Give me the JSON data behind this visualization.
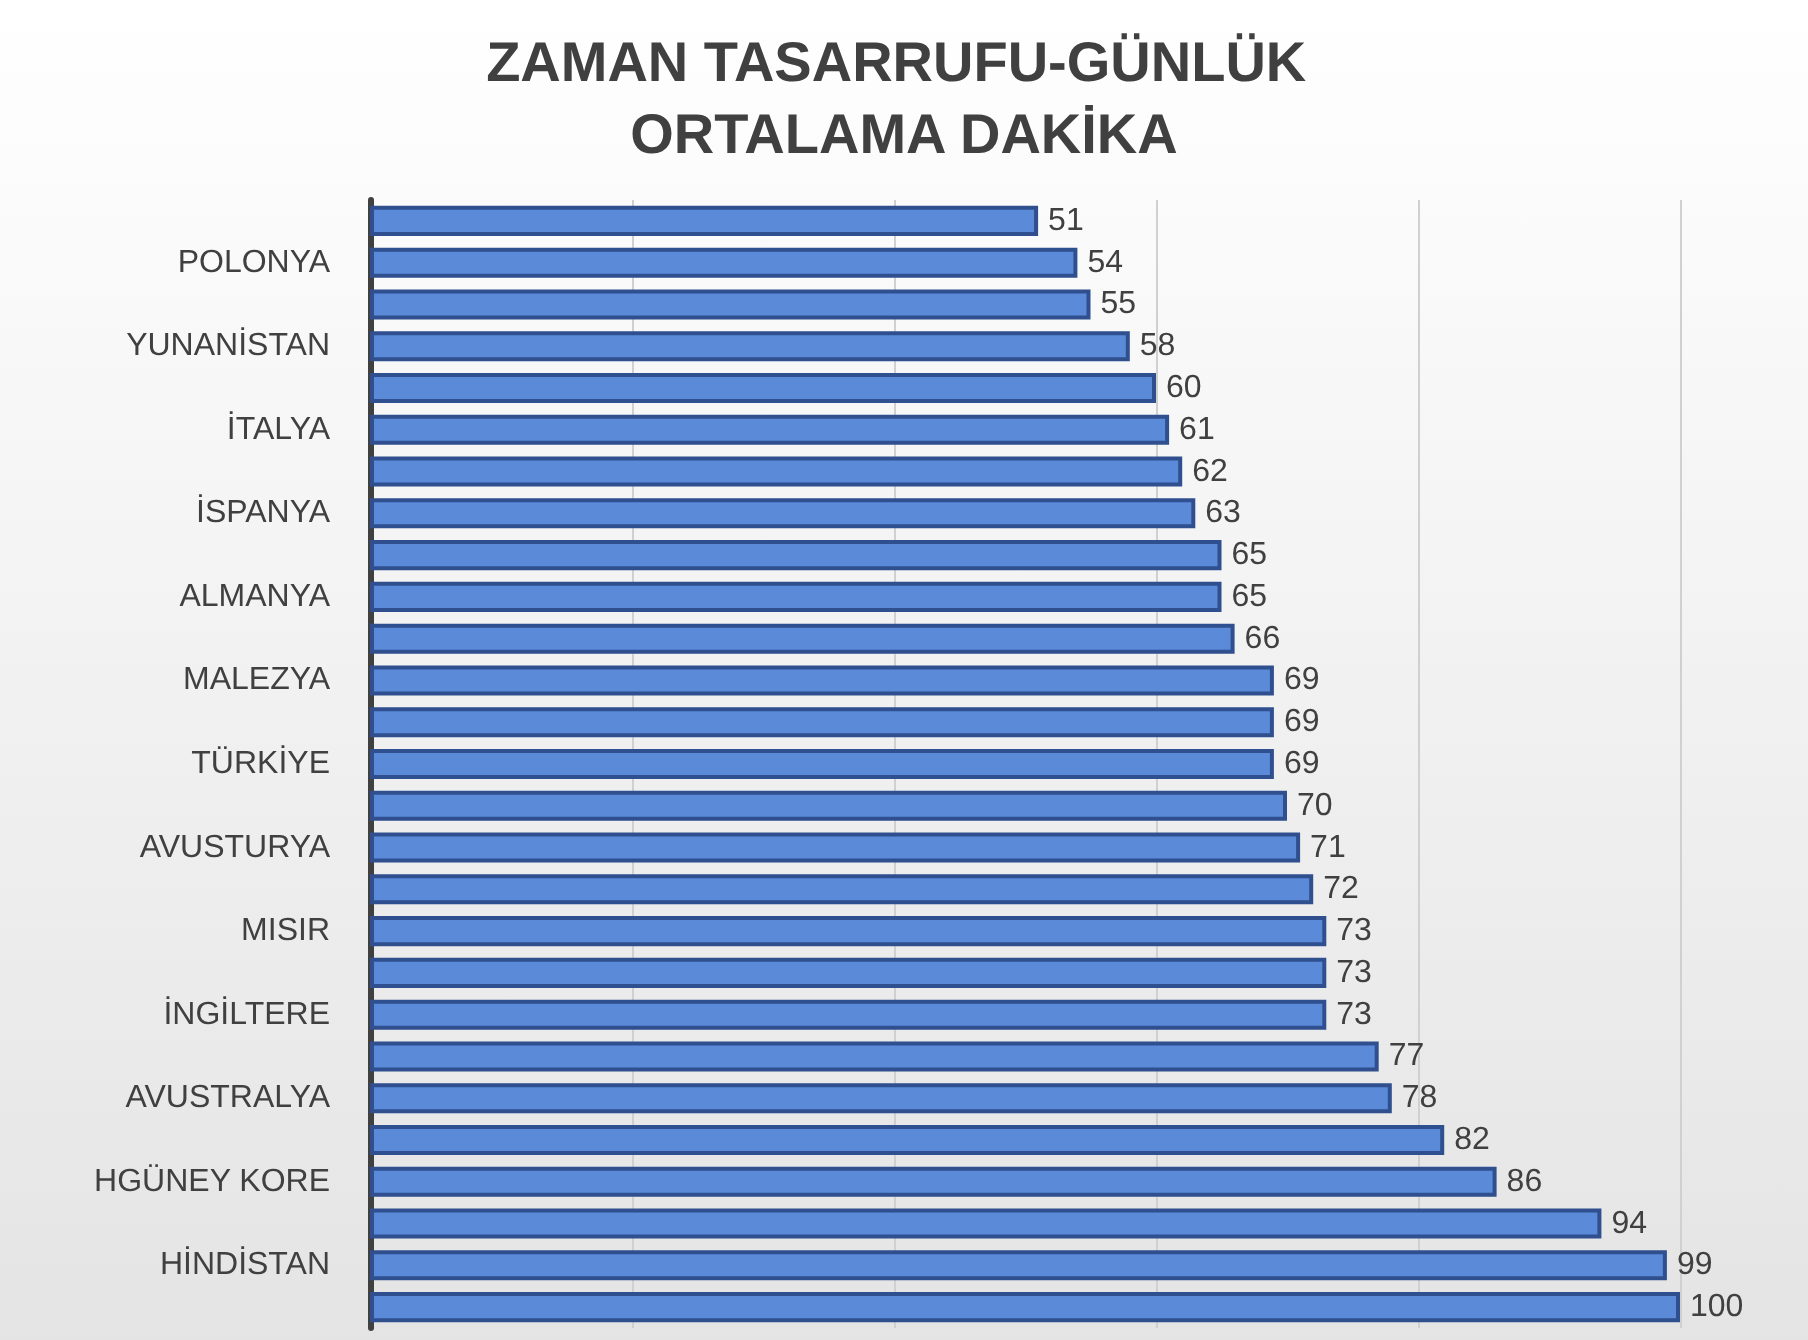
{
  "chart_data": {
    "type": "bar",
    "orientation": "horizontal",
    "title": "ZAMAN TASARRUFU-GÜNLÜK ORTALAMA DAKİKA",
    "categories": [
      null,
      "POLONYA",
      null,
      "YUNANİSTAN",
      null,
      "İTALYA",
      null,
      "İSPANYA",
      null,
      "ALMANYA",
      null,
      "MALEZYA",
      null,
      "TÜRKİYE",
      null,
      "AVUSTURYA",
      null,
      "MISIR",
      null,
      "İNGİLTERE",
      null,
      "AVUSTRALYA",
      null,
      "HGÜNEY KORE",
      null,
      "HİNDİSTAN",
      null
    ],
    "values": [
      51,
      54,
      55,
      58,
      60,
      61,
      62,
      63,
      65,
      65,
      66,
      69,
      69,
      69,
      70,
      71,
      72,
      73,
      73,
      73,
      77,
      78,
      82,
      86,
      94,
      99,
      100
    ],
    "color": "#5b8ad8",
    "data_labels": true,
    "tick_labels": "y",
    "grid": "x"
  }
}
